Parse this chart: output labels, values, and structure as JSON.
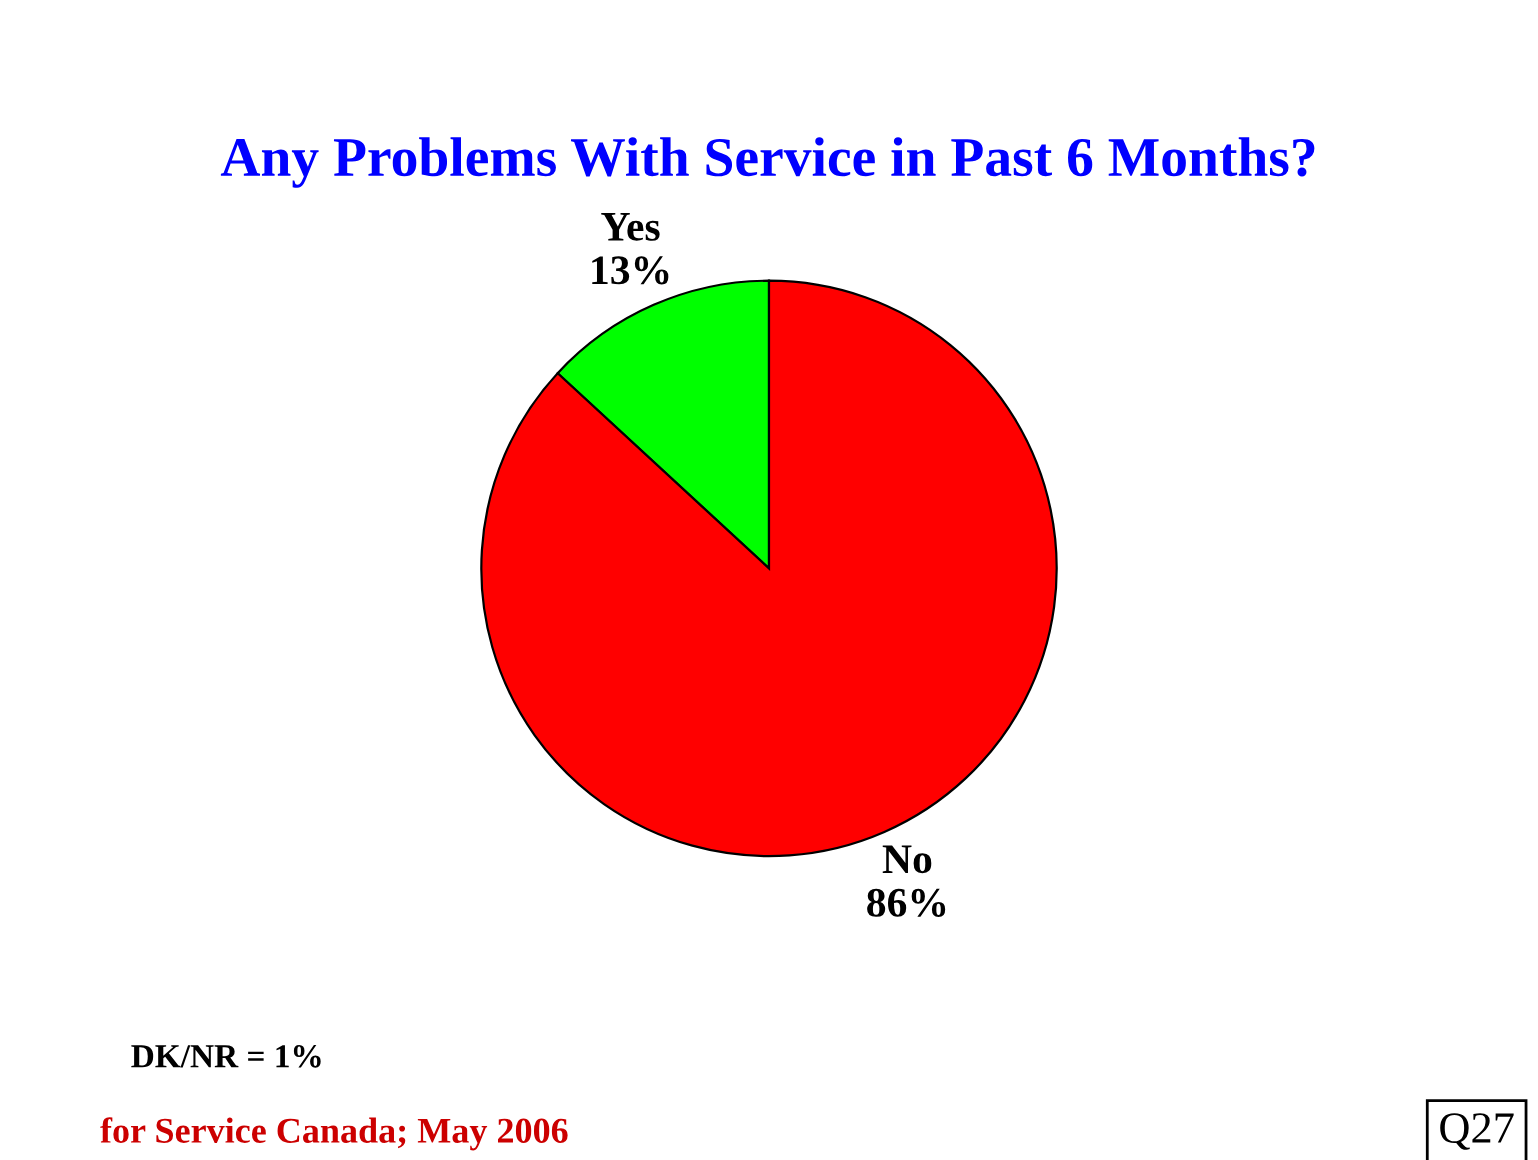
{
  "chart_data": {
    "type": "pie",
    "title": "Any Problems With Service in Past 6 Months?",
    "categories": [
      "Yes",
      "No"
    ],
    "values": [
      13,
      86
    ],
    "value_labels": [
      "13%",
      "86%"
    ],
    "colors": [
      "#00ff00",
      "#ff0000"
    ],
    "annotations": [
      "DK/NR = 1%",
      "for Service Canada; May 2006",
      "Q27"
    ]
  }
}
